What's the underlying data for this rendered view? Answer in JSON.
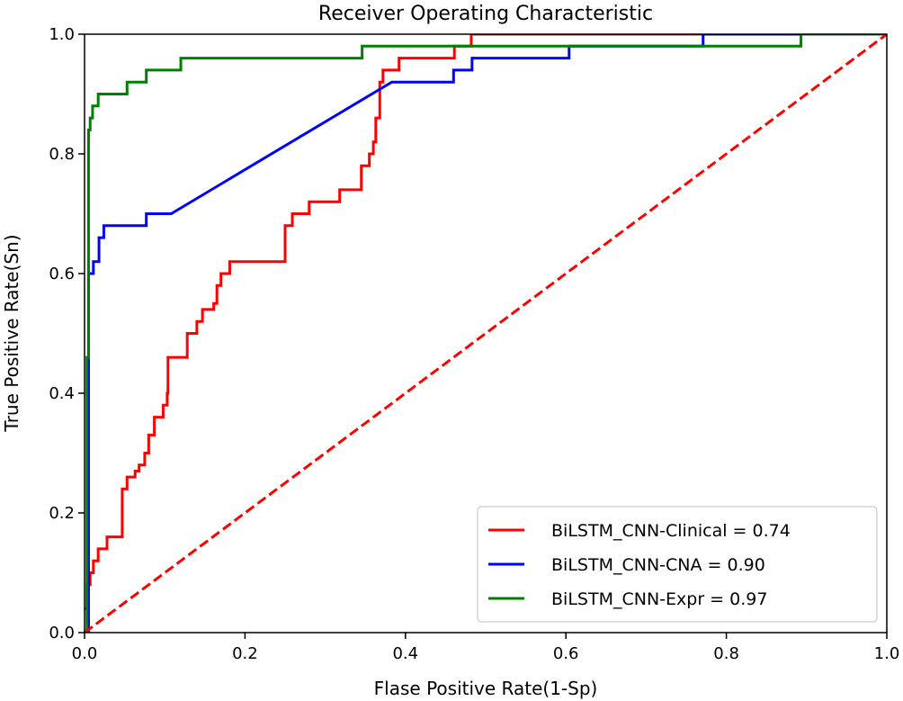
{
  "chart_data": {
    "type": "line",
    "title": "Receiver Operating Characteristic",
    "xlabel": "Flase Positive Rate(1-Sp)",
    "ylabel": "True Positive Rate(Sn)",
    "xlim": [
      0.0,
      1.0
    ],
    "ylim": [
      0.0,
      1.0
    ],
    "xticks": [
      "0.0",
      "0.2",
      "0.4",
      "0.6",
      "0.8",
      "1.0"
    ],
    "yticks": [
      "0.0",
      "0.2",
      "0.4",
      "0.6",
      "0.8",
      "1.0"
    ],
    "grid": false,
    "legend_position": "lower-right",
    "series": [
      {
        "name": "BiLSTM_CNN-Clinical = 0.74",
        "color": "#ff0000",
        "style": "solid",
        "x": [
          0.0,
          0.003,
          0.003,
          0.007,
          0.007,
          0.011,
          0.011,
          0.017,
          0.017,
          0.028,
          0.028,
          0.047,
          0.047,
          0.053,
          0.053,
          0.063,
          0.063,
          0.068,
          0.068,
          0.075,
          0.075,
          0.08,
          0.08,
          0.087,
          0.087,
          0.098,
          0.098,
          0.103,
          0.103,
          0.104,
          0.104,
          0.128,
          0.128,
          0.14,
          0.14,
          0.147,
          0.147,
          0.161,
          0.161,
          0.165,
          0.165,
          0.17,
          0.17,
          0.181,
          0.181,
          0.25,
          0.25,
          0.259,
          0.259,
          0.28,
          0.28,
          0.318,
          0.318,
          0.345,
          0.345,
          0.355,
          0.355,
          0.36,
          0.36,
          0.363,
          0.363,
          0.368,
          0.368,
          0.372,
          0.372,
          0.392,
          0.392,
          0.461,
          0.461,
          0.468,
          0.468,
          0.482,
          0.482,
          0.621,
          0.621,
          0.67,
          0.67,
          0.745,
          0.745,
          0.825,
          0.825,
          0.867,
          0.867,
          0.885,
          0.885,
          0.893,
          0.893,
          1.0
        ],
        "y": [
          0.04,
          0.04,
          0.08,
          0.08,
          0.1,
          0.1,
          0.12,
          0.12,
          0.14,
          0.14,
          0.16,
          0.16,
          0.24,
          0.24,
          0.26,
          0.26,
          0.27,
          0.27,
          0.28,
          0.28,
          0.3,
          0.3,
          0.33,
          0.33,
          0.36,
          0.36,
          0.38,
          0.38,
          0.4,
          0.4,
          0.46,
          0.46,
          0.5,
          0.5,
          0.52,
          0.52,
          0.54,
          0.54,
          0.55,
          0.55,
          0.58,
          0.58,
          0.6,
          0.6,
          0.62,
          0.62,
          0.68,
          0.68,
          0.7,
          0.7,
          0.72,
          0.72,
          0.74,
          0.74,
          0.78,
          0.78,
          0.8,
          0.8,
          0.82,
          0.82,
          0.86,
          0.86,
          0.92,
          0.92,
          0.94,
          0.94,
          0.96,
          0.96,
          0.98,
          0.98,
          0.98,
          0.98,
          1.0,
          1.0,
          1.0,
          1.0,
          1.0,
          1.0,
          1.0,
          1.0,
          1.0,
          1.0,
          1.0,
          1.0,
          1.0,
          1.0,
          1.0,
          1.0
        ]
      },
      {
        "name": "BiLSTM_CNN-CNA = 0.90",
        "color": "#0000ff",
        "style": "solid",
        "x": [
          0.0,
          0.005,
          0.005,
          0.011,
          0.011,
          0.018,
          0.018,
          0.024,
          0.024,
          0.077,
          0.077,
          0.108,
          0.383,
          0.46,
          0.46,
          0.483,
          0.483,
          0.604,
          0.604,
          0.771,
          0.771,
          0.867,
          0.867,
          1.0
        ],
        "y": [
          0.0,
          0.0,
          0.6,
          0.6,
          0.62,
          0.62,
          0.66,
          0.66,
          0.68,
          0.68,
          0.7,
          0.7,
          0.92,
          0.92,
          0.94,
          0.94,
          0.96,
          0.96,
          0.98,
          0.98,
          1.0,
          1.0,
          1.0,
          1.0
        ]
      },
      {
        "name": "BiLSTM_CNN-Expr = 0.97",
        "color": "#008000",
        "style": "solid",
        "x": [
          0.0,
          0.003,
          0.003,
          0.005,
          0.005,
          0.007,
          0.007,
          0.01,
          0.01,
          0.017,
          0.017,
          0.053,
          0.053,
          0.077,
          0.077,
          0.12,
          0.12,
          0.346,
          0.346,
          0.893,
          0.893,
          1.0
        ],
        "y": [
          0.0,
          0.0,
          0.46,
          0.46,
          0.84,
          0.84,
          0.86,
          0.86,
          0.88,
          0.88,
          0.9,
          0.9,
          0.92,
          0.92,
          0.94,
          0.94,
          0.96,
          0.96,
          0.98,
          0.98,
          1.0,
          1.0
        ]
      },
      {
        "color": "#ff0000",
        "style": "dashed",
        "x": [
          0.0,
          1.0
        ],
        "y": [
          0.0,
          1.0
        ]
      }
    ]
  }
}
